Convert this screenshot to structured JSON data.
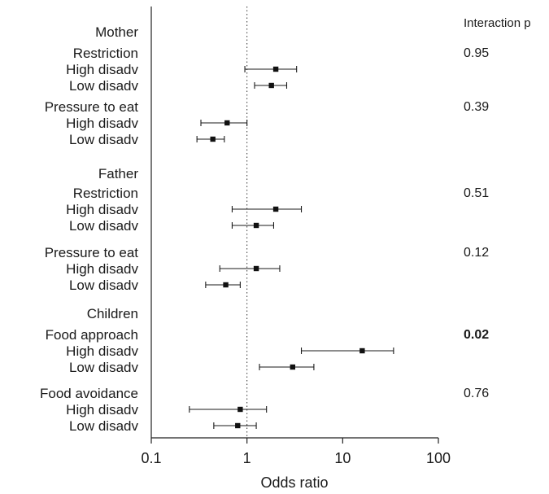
{
  "chart_data": {
    "type": "forest",
    "xlabel": "Odds ratio",
    "x_scale": "log",
    "xlim": [
      0.1,
      100
    ],
    "x_ticks": [
      0.1,
      1,
      10,
      100
    ],
    "x_tick_labels": [
      "0.1",
      "1",
      "10",
      "100"
    ],
    "reference_line": 1,
    "p_header": "Interaction p",
    "groups": [
      {
        "label": "Mother",
        "subgroups": [
          {
            "label": "Restriction",
            "p": "0.95",
            "p_bold": false,
            "rows": [
              {
                "label": "High disadv",
                "or": 2.0,
                "lo": 0.95,
                "hi": 3.3
              },
              {
                "label": "Low disadv",
                "or": 1.8,
                "lo": 1.2,
                "hi": 2.6
              }
            ]
          },
          {
            "label": "Pressure to eat",
            "p": "0.39",
            "p_bold": false,
            "rows": [
              {
                "label": "High disadv",
                "or": 0.62,
                "lo": 0.33,
                "hi": 1.0
              },
              {
                "label": "Low disadv",
                "or": 0.44,
                "lo": 0.3,
                "hi": 0.58
              }
            ]
          }
        ]
      },
      {
        "label": "Father",
        "subgroups": [
          {
            "label": "Restriction",
            "p": "0.51",
            "p_bold": false,
            "rows": [
              {
                "label": "High disadv",
                "or": 2.0,
                "lo": 0.7,
                "hi": 3.7
              },
              {
                "label": "Low disadv",
                "or": 1.25,
                "lo": 0.7,
                "hi": 1.9
              }
            ]
          },
          {
            "label": "Pressure to eat",
            "p": "0.12",
            "p_bold": false,
            "rows": [
              {
                "label": "High disadv",
                "or": 1.25,
                "lo": 0.52,
                "hi": 2.2
              },
              {
                "label": "Low disadv",
                "or": 0.6,
                "lo": 0.37,
                "hi": 0.85
              }
            ]
          }
        ]
      },
      {
        "label": "Children",
        "subgroups": [
          {
            "label": "Food approach",
            "p": "0.02",
            "p_bold": true,
            "rows": [
              {
                "label": "High disadv",
                "or": 16.0,
                "lo": 3.7,
                "hi": 34.0
              },
              {
                "label": "Low disadv",
                "or": 3.0,
                "lo": 1.35,
                "hi": 5.0
              }
            ]
          },
          {
            "label": "Food avoidance",
            "p": "0.76",
            "p_bold": false,
            "rows": [
              {
                "label": "High disadv",
                "or": 0.85,
                "lo": 0.25,
                "hi": 1.6
              },
              {
                "label": "Low disadv",
                "or": 0.8,
                "lo": 0.45,
                "hi": 1.25
              }
            ]
          }
        ]
      }
    ]
  }
}
